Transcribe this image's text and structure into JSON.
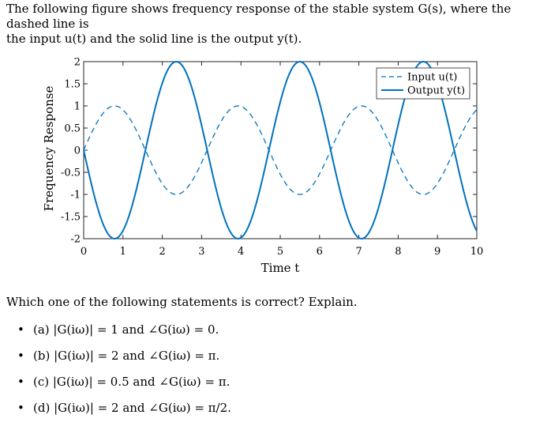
{
  "intro": {
    "line1": "The following figure shows frequency response of the stable system G(s), where the dashed line is",
    "line2": "the input u(t) and the solid line is the output y(t)."
  },
  "chart_data": {
    "type": "line",
    "ylabel": "Frequency Response",
    "xlabel": "Time t",
    "xlim": [
      0,
      10
    ],
    "ylim": [
      -2,
      2
    ],
    "xticks": [
      "0",
      "1",
      "2",
      "3",
      "4",
      "5",
      "6",
      "7",
      "8",
      "9",
      "10"
    ],
    "yticks": [
      "2",
      "1.5",
      "1",
      "0.5",
      "0",
      "-0.5",
      "-1",
      "-1.5",
      "-2"
    ],
    "grid": false,
    "legend": "top-right",
    "series": [
      {
        "name": "Input u(t)",
        "style": "dashed",
        "color": "#0072BD",
        "amplitude": 1,
        "period": 3.14159,
        "phase": 0,
        "function": "sin"
      },
      {
        "name": "Output y(t)",
        "style": "solid",
        "color": "#0072BD",
        "amplitude": 2,
        "period": 3.14159,
        "phase": 3.14159,
        "function": "sin"
      }
    ]
  },
  "question": "Which one of the following statements is correct? Explain.",
  "options": [
    {
      "bullet": "•",
      "text": "(a) |G(iω)| = 1 and ∠G(iω) = 0."
    },
    {
      "bullet": "•",
      "text": "(b) |G(iω)| = 2 and ∠G(iω) = π."
    },
    {
      "bullet": "•",
      "text": "(c) |G(iω)| = 0.5 and ∠G(iω) = π."
    },
    {
      "bullet": "•",
      "text": "(d) |G(iω)| = 2 and ∠G(iω) = π/2."
    }
  ]
}
